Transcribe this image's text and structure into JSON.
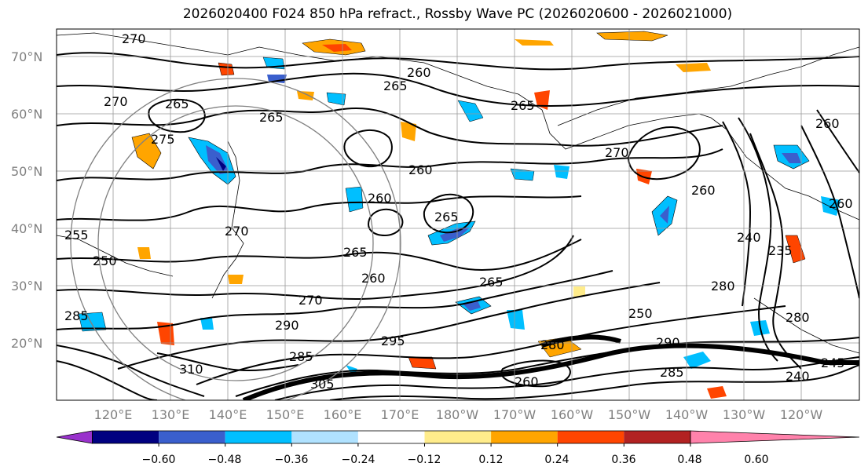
{
  "title": "2026020400 F024 850 hPa refract., Rossby Wave PC (2026020600 - 2026021000)",
  "lat_labels": [
    "70°N",
    "60°N",
    "50°N",
    "40°N",
    "30°N",
    "20°N"
  ],
  "lon_labels": [
    "120°E",
    "130°E",
    "140°E",
    "150°E",
    "160°E",
    "170°E",
    "180°W",
    "170°W",
    "160°W",
    "150°W",
    "140°W",
    "130°W",
    "120°W"
  ],
  "colorbar": {
    "colors": [
      "#9932CC",
      "#000080",
      "#3A5FCD",
      "#00BFFF",
      "#B0E2FF",
      "#FFFFFF",
      "#FFEC8B",
      "#FFA500",
      "#FF4500",
      "#B22222",
      "#FF82AB"
    ],
    "labels": [
      "−0.60",
      "−0.48",
      "−0.36",
      "−0.24",
      "−0.12",
      "0.12",
      "0.24",
      "0.36",
      "0.48",
      "0.60"
    ]
  },
  "contour_labels": [
    "270",
    "260",
    "265",
    "270",
    "265",
    "275",
    "270",
    "255",
    "265",
    "260",
    "260",
    "265",
    "250",
    "260",
    "270",
    "265",
    "270",
    "265",
    "260",
    "260",
    "260",
    "235",
    "240",
    "265",
    "285",
    "280",
    "290",
    "295",
    "285",
    "310",
    "305",
    "280",
    "260",
    "285",
    "290",
    "280",
    "240",
    "245",
    "250"
  ]
}
